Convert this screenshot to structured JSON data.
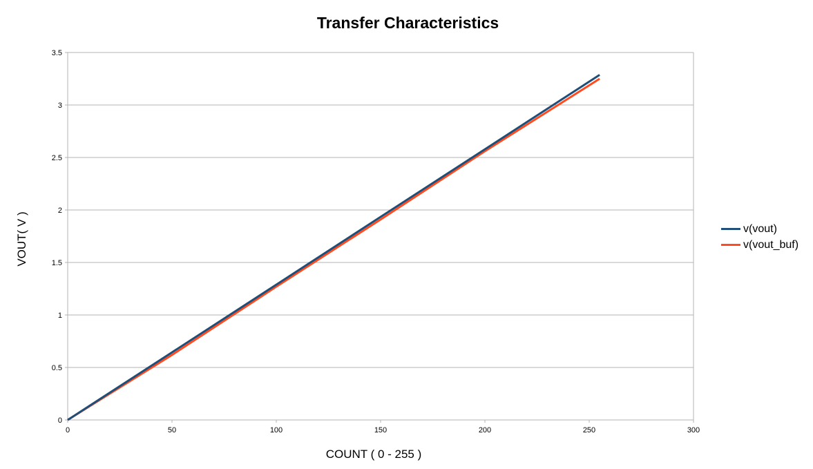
{
  "chart_data": {
    "type": "line",
    "title": "Transfer Characteristics",
    "xlabel": "COUNT ( 0 - 255 )",
    "ylabel": "VOUT( V )",
    "xlim": [
      0,
      300
    ],
    "ylim": [
      0,
      3.5
    ],
    "x_ticks": [
      "0",
      "50",
      "100",
      "150",
      "200",
      "250",
      "300"
    ],
    "y_ticks": [
      "0",
      "0.5",
      "1",
      "1.5",
      "2",
      "2.5",
      "3",
      "3.5"
    ],
    "grid": true,
    "legend_position": "right",
    "series": [
      {
        "name": "v(vout)",
        "color": "#1f4e79",
        "x": [
          0,
          50,
          100,
          150,
          200,
          255
        ],
        "y": [
          0,
          0.644,
          1.289,
          1.934,
          2.578,
          3.287
        ]
      },
      {
        "name": "v(vout_buf)",
        "color": "#ff4b1f",
        "x": [
          0,
          50,
          100,
          150,
          200,
          255
        ],
        "y": [
          0,
          0.62,
          1.27,
          1.91,
          2.56,
          3.25
        ]
      }
    ]
  }
}
